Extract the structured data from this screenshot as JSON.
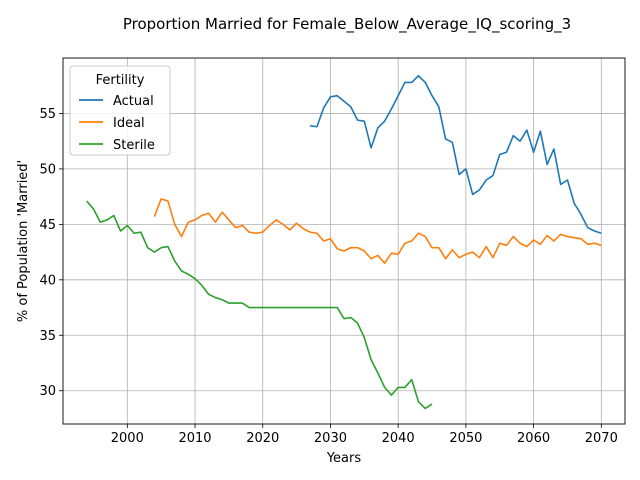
{
  "chart_data": {
    "type": "line",
    "title": "Proportion Married for Female_Below_Average_IQ_scoring_3",
    "xlabel": "Years",
    "ylabel": "% of Population 'Married'",
    "xlim": [
      1990.5,
      2073.5
    ],
    "ylim": [
      27.0,
      60.0
    ],
    "xticks": [
      2000,
      2010,
      2020,
      2030,
      2040,
      2050,
      2060,
      2070
    ],
    "yticks": [
      30,
      35,
      40,
      45,
      50,
      55
    ],
    "grid": true,
    "legend": {
      "title": "Fertility",
      "position": "upper-left"
    },
    "series": [
      {
        "name": "Actual",
        "color": "#1f77b4",
        "x": [
          2027,
          2028,
          2029,
          2030,
          2031,
          2032,
          2033,
          2034,
          2035,
          2036,
          2037,
          2038,
          2039,
          2040,
          2041,
          2042,
          2043,
          2044,
          2045,
          2046,
          2047,
          2048,
          2049,
          2050,
          2051,
          2052,
          2053,
          2054,
          2055,
          2056,
          2057,
          2058,
          2059,
          2060,
          2061,
          2062,
          2063,
          2064,
          2065,
          2066,
          2067,
          2068,
          2069,
          2070
        ],
        "y": [
          53.9,
          53.8,
          55.5,
          56.5,
          56.6,
          56.1,
          55.6,
          54.4,
          54.3,
          51.9,
          53.7,
          54.3,
          55.4,
          56.6,
          57.8,
          57.8,
          58.4,
          57.8,
          56.6,
          55.6,
          52.7,
          52.4,
          49.5,
          50.0,
          47.7,
          48.1,
          49.0,
          49.4,
          51.3,
          51.5,
          53.0,
          52.5,
          53.5,
          51.5,
          53.4,
          50.4,
          51.8,
          48.6,
          49.0,
          46.9,
          45.9,
          44.7,
          44.4,
          44.2
        ]
      },
      {
        "name": "Ideal",
        "color": "#ff7f0e",
        "x": [
          2004,
          2005,
          2006,
          2007,
          2008,
          2009,
          2010,
          2011,
          2012,
          2013,
          2014,
          2015,
          2016,
          2017,
          2018,
          2019,
          2020,
          2021,
          2022,
          2023,
          2024,
          2025,
          2026,
          2027,
          2028,
          2029,
          2030,
          2031,
          2032,
          2033,
          2034,
          2035,
          2036,
          2037,
          2038,
          2039,
          2040,
          2041,
          2042,
          2043,
          2044,
          2045,
          2046,
          2047,
          2048,
          2049,
          2050,
          2051,
          2052,
          2053,
          2054,
          2055,
          2056,
          2057,
          2058,
          2059,
          2060,
          2061,
          2062,
          2063,
          2064,
          2065,
          2066,
          2067,
          2068,
          2069,
          2070
        ],
        "y": [
          45.7,
          47.3,
          47.1,
          45.0,
          43.9,
          45.2,
          45.4,
          45.8,
          46.0,
          45.2,
          46.1,
          45.4,
          44.7,
          44.9,
          44.3,
          44.2,
          44.3,
          44.9,
          45.4,
          45.0,
          44.5,
          45.1,
          44.6,
          44.3,
          44.2,
          43.5,
          43.7,
          42.8,
          42.6,
          42.9,
          42.9,
          42.6,
          41.9,
          42.2,
          41.5,
          42.4,
          42.3,
          43.3,
          43.5,
          44.2,
          43.9,
          42.9,
          42.9,
          41.9,
          42.7,
          42.0,
          42.3,
          42.5,
          42.0,
          43.0,
          42.0,
          43.3,
          43.1,
          43.9,
          43.3,
          43.0,
          43.6,
          43.2,
          44.0,
          43.5,
          44.1,
          43.9,
          43.8,
          43.7,
          43.2,
          43.3,
          43.1
        ]
      },
      {
        "name": "Sterile",
        "color": "#2ca02c",
        "x": [
          1994,
          1995,
          1996,
          1997,
          1998,
          1999,
          2000,
          2001,
          2002,
          2003,
          2004,
          2005,
          2006,
          2007,
          2008,
          2009,
          2010,
          2011,
          2012,
          2013,
          2014,
          2015,
          2016,
          2017,
          2018,
          2019,
          2020,
          2021,
          2022,
          2023,
          2024,
          2025,
          2026,
          2027,
          2028,
          2029,
          2030,
          2031,
          2032,
          2033,
          2034,
          2035,
          2036,
          2037,
          2038,
          2039,
          2040,
          2041,
          2042,
          2043,
          2044,
          2045
        ],
        "y": [
          47.1,
          46.4,
          45.2,
          45.4,
          45.8,
          44.4,
          44.9,
          44.2,
          44.3,
          42.9,
          42.5,
          42.9,
          43.0,
          41.7,
          40.8,
          40.5,
          40.1,
          39.5,
          38.7,
          38.4,
          38.2,
          37.9,
          37.9,
          37.9,
          37.5,
          37.5,
          37.5,
          37.5,
          37.5,
          37.5,
          37.5,
          37.5,
          37.5,
          37.5,
          37.5,
          37.5,
          37.5,
          37.5,
          36.5,
          36.6,
          36.1,
          34.8,
          32.8,
          31.6,
          30.3,
          29.6,
          30.3,
          30.3,
          31.0,
          29.0,
          28.4,
          28.8
        ]
      }
    ]
  }
}
